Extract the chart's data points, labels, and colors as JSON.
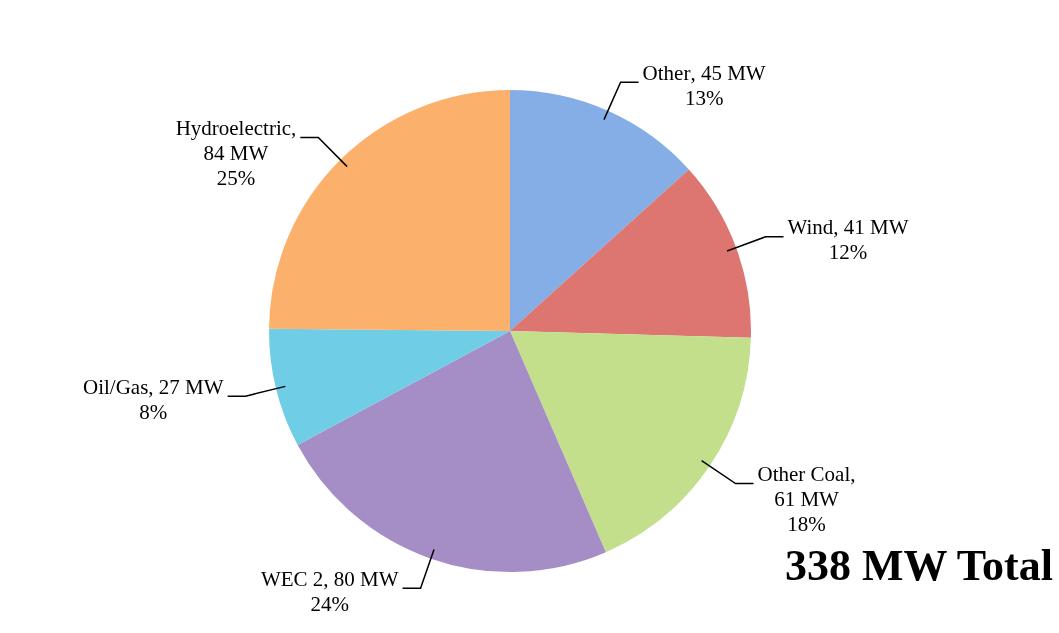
{
  "chart_data": {
    "type": "pie",
    "categories": [
      "Other",
      "Wind",
      "Other Coal",
      "WEC 2",
      "Oil/Gas",
      "Hydroelectric"
    ],
    "values": [
      45,
      41,
      61,
      80,
      27,
      84
    ],
    "colors": [
      "#86aee6",
      "#dd7670",
      "#c3df8c",
      "#a58dc6",
      "#6fcde6",
      "#fbb06c"
    ],
    "value_labels": [
      ", 45 MW\n13%",
      ", 41 MW\n12%",
      ",\n61 MW\n18%",
      ", 80 MW\n24%",
      ", 27 MW\n8%",
      ",\n84 MW\n25%"
    ],
    "legend": false,
    "annotations": [
      "338 MW Total"
    ]
  }
}
